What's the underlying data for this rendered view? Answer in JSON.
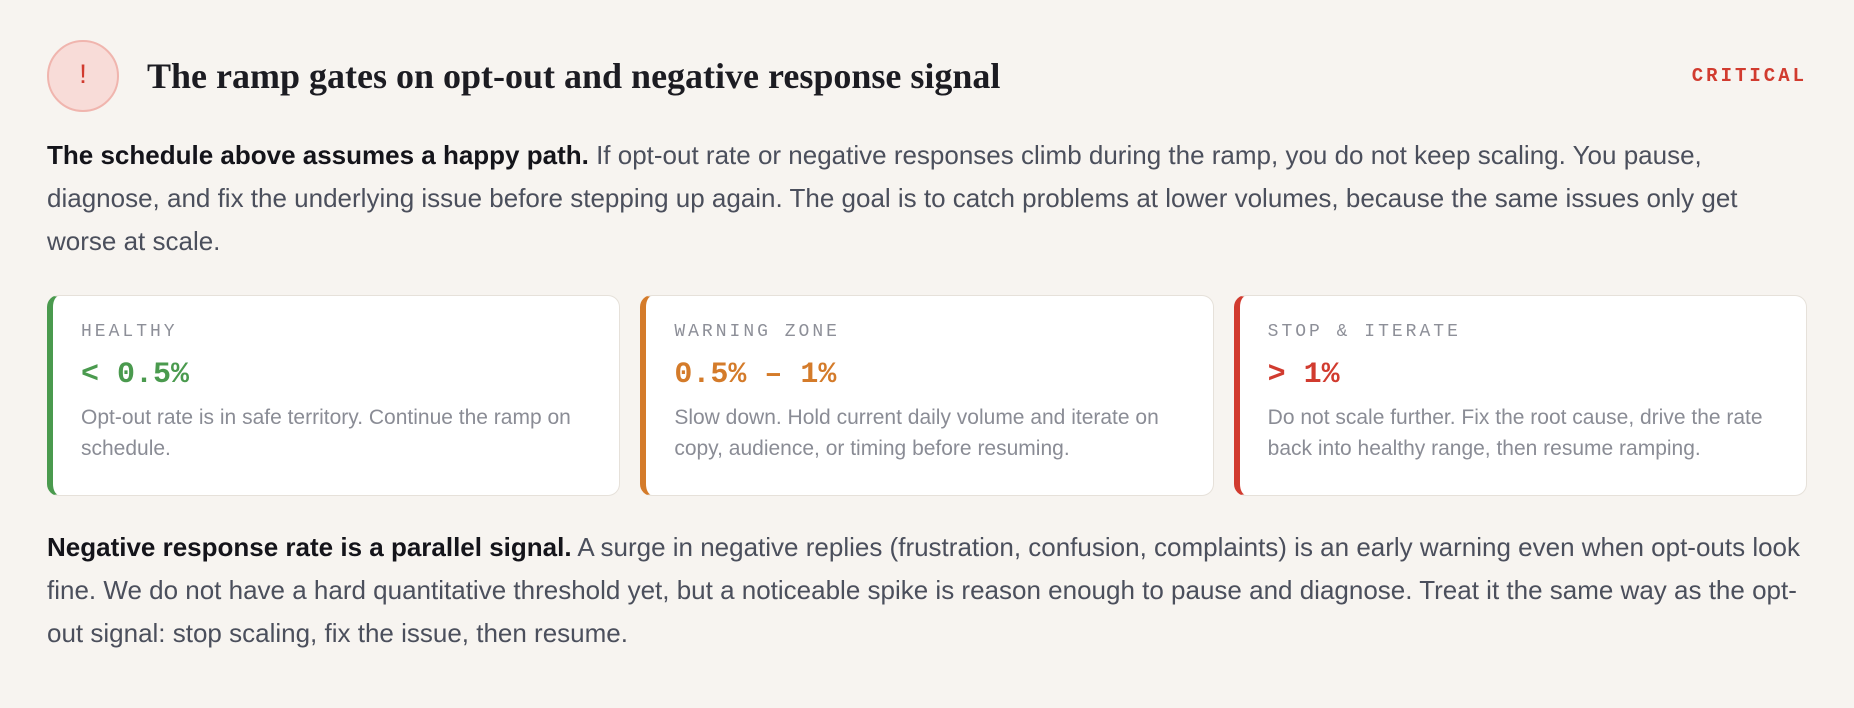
{
  "header": {
    "alert_glyph": "!",
    "title": "The ramp gates on opt-out and negative response signal",
    "badge": "CRITICAL"
  },
  "intro": {
    "lead": "The schedule above assumes a happy path.",
    "body": " If opt-out rate or negative responses climb during the ramp, you do not keep scaling. You pause, diagnose, and fix the underlying issue before stepping up again. The goal is to catch problems at lower volumes, because the same issues only get worse at scale."
  },
  "cards": [
    {
      "label": "HEALTHY",
      "value": "< 0.5%",
      "description": "Opt-out rate is in safe territory. Continue the ramp on schedule.",
      "color": "#4a9a4e"
    },
    {
      "label": "WARNING ZONE",
      "value": "0.5% – 1%",
      "description": "Slow down. Hold current daily volume and iterate on copy, audience, or timing before resuming.",
      "color": "#d47b2a"
    },
    {
      "label": "STOP & ITERATE",
      "value": "> 1%",
      "description": "Do not scale further. Fix the root cause, drive the rate back into healthy range, then resume ramping.",
      "color": "#d13b2f"
    }
  ],
  "followup": {
    "lead": "Negative response rate is a parallel signal.",
    "body": " A surge in negative replies (frustration, confusion, complaints) is an early warning even when opt-outs look fine. We do not have a hard quantitative threshold yet, but a noticeable spike is reason enough to pause and diagnose. Treat it the same way as the opt-out signal: stop scaling, fix the issue, then resume."
  },
  "colors": {
    "accent_critical": "#d13b2f",
    "background": "#f7f4f0"
  }
}
